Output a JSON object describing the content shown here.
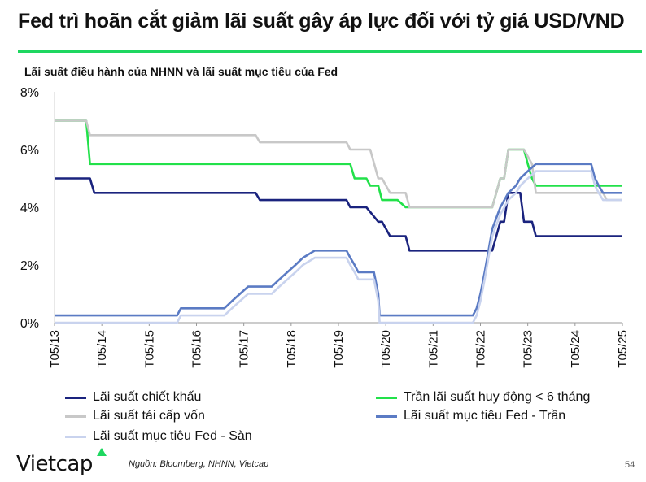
{
  "header": {
    "title": "Fed trì hoãn cắt giảm lãi suất gây áp lực đối với tỷ giá USD/VND",
    "rule_color": "#1ed760"
  },
  "chart_data": {
    "type": "line",
    "title": "Lãi suất điều hành của NHNN và lãi suất mục tiêu của Fed",
    "xlabel": "",
    "ylabel": "",
    "ylim": [
      0,
      8
    ],
    "xlim": [
      2013.33,
      2025.33
    ],
    "yticks": [
      "0%",
      "2%",
      "4%",
      "6%",
      "8%"
    ],
    "xticks": [
      "T05/13",
      "T05/14",
      "T05/15",
      "T05/16",
      "T05/17",
      "T05/18",
      "T05/19",
      "T05/20",
      "T05/21",
      "T05/22",
      "T05/23",
      "T05/24",
      "T05/25"
    ],
    "grid": false,
    "legend_position": "bottom",
    "series": [
      {
        "name": "Lãi suất chiết khấu",
        "color": "#1a237e",
        "points": [
          [
            2013.33,
            5.0
          ],
          [
            2014.08,
            5.0
          ],
          [
            2014.17,
            4.5
          ],
          [
            2017.58,
            4.5
          ],
          [
            2017.67,
            4.25
          ],
          [
            2019.5,
            4.25
          ],
          [
            2019.58,
            4.0
          ],
          [
            2019.92,
            4.0
          ],
          [
            2020.17,
            3.5
          ],
          [
            2020.25,
            3.5
          ],
          [
            2020.42,
            3.0
          ],
          [
            2020.75,
            3.0
          ],
          [
            2020.83,
            2.5
          ],
          [
            2022.58,
            2.5
          ],
          [
            2022.75,
            3.5
          ],
          [
            2022.83,
            3.5
          ],
          [
            2022.92,
            4.5
          ],
          [
            2023.17,
            4.5
          ],
          [
            2023.25,
            3.5
          ],
          [
            2023.42,
            3.5
          ],
          [
            2023.5,
            3.0
          ],
          [
            2025.33,
            3.0
          ]
        ]
      },
      {
        "name": "Trần lãi suất huy động < 6 tháng",
        "color": "#22e14a",
        "points": [
          [
            2013.33,
            7.0
          ],
          [
            2014.0,
            7.0
          ],
          [
            2014.08,
            5.5
          ],
          [
            2019.58,
            5.5
          ],
          [
            2019.67,
            5.0
          ],
          [
            2019.92,
            5.0
          ],
          [
            2020.0,
            4.75
          ],
          [
            2020.17,
            4.75
          ],
          [
            2020.25,
            4.25
          ],
          [
            2020.58,
            4.25
          ],
          [
            2020.75,
            4.0
          ],
          [
            2022.58,
            4.0
          ],
          [
            2022.75,
            5.0
          ],
          [
            2022.83,
            5.0
          ],
          [
            2022.92,
            6.0
          ],
          [
            2023.25,
            6.0
          ],
          [
            2023.33,
            5.5
          ],
          [
            2023.42,
            5.0
          ],
          [
            2023.5,
            4.75
          ],
          [
            2025.33,
            4.75
          ]
        ]
      },
      {
        "name": "Lãi suất tái cấp vốn",
        "color": "#c8c8c8",
        "points": [
          [
            2013.33,
            7.0
          ],
          [
            2014.0,
            7.0
          ],
          [
            2014.08,
            6.5
          ],
          [
            2017.58,
            6.5
          ],
          [
            2017.67,
            6.25
          ],
          [
            2019.5,
            6.25
          ],
          [
            2019.58,
            6.0
          ],
          [
            2020.0,
            6.0
          ],
          [
            2020.17,
            5.0
          ],
          [
            2020.25,
            5.0
          ],
          [
            2020.42,
            4.5
          ],
          [
            2020.75,
            4.5
          ],
          [
            2020.83,
            4.0
          ],
          [
            2022.58,
            4.0
          ],
          [
            2022.75,
            5.0
          ],
          [
            2022.83,
            5.0
          ],
          [
            2022.92,
            6.0
          ],
          [
            2023.25,
            6.0
          ],
          [
            2023.42,
            5.5
          ],
          [
            2023.5,
            4.5
          ],
          [
            2024.92,
            4.5
          ],
          [
            2025.0,
            4.25
          ],
          [
            2025.33,
            4.25
          ]
        ]
      },
      {
        "name": "Lãi suất mục tiêu Fed - Trần",
        "color": "#5b7bc4",
        "points": [
          [
            2013.33,
            0.25
          ],
          [
            2015.92,
            0.25
          ],
          [
            2016.0,
            0.5
          ],
          [
            2016.92,
            0.5
          ],
          [
            2017.08,
            0.75
          ],
          [
            2017.25,
            1.0
          ],
          [
            2017.42,
            1.25
          ],
          [
            2017.92,
            1.25
          ],
          [
            2018.08,
            1.5
          ],
          [
            2018.25,
            1.75
          ],
          [
            2018.42,
            2.0
          ],
          [
            2018.58,
            2.25
          ],
          [
            2018.83,
            2.5
          ],
          [
            2019.5,
            2.5
          ],
          [
            2019.58,
            2.25
          ],
          [
            2019.67,
            2.0
          ],
          [
            2019.75,
            1.75
          ],
          [
            2020.08,
            1.75
          ],
          [
            2020.17,
            1.0
          ],
          [
            2020.2,
            0.25
          ],
          [
            2022.17,
            0.25
          ],
          [
            2022.25,
            0.5
          ],
          [
            2022.33,
            1.0
          ],
          [
            2022.42,
            1.75
          ],
          [
            2022.5,
            2.5
          ],
          [
            2022.58,
            3.25
          ],
          [
            2022.75,
            4.0
          ],
          [
            2022.92,
            4.5
          ],
          [
            2023.08,
            4.75
          ],
          [
            2023.17,
            5.0
          ],
          [
            2023.33,
            5.25
          ],
          [
            2023.5,
            5.5
          ],
          [
            2024.67,
            5.5
          ],
          [
            2024.75,
            5.0
          ],
          [
            2024.83,
            4.75
          ],
          [
            2024.92,
            4.5
          ],
          [
            2025.33,
            4.5
          ]
        ]
      },
      {
        "name": "Lãi suất mục tiêu Fed - Sàn",
        "color": "#c9d3ee",
        "points": [
          [
            2013.33,
            0.0
          ],
          [
            2015.92,
            0.0
          ],
          [
            2016.0,
            0.25
          ],
          [
            2016.92,
            0.25
          ],
          [
            2017.08,
            0.5
          ],
          [
            2017.25,
            0.75
          ],
          [
            2017.42,
            1.0
          ],
          [
            2017.92,
            1.0
          ],
          [
            2018.08,
            1.25
          ],
          [
            2018.25,
            1.5
          ],
          [
            2018.42,
            1.75
          ],
          [
            2018.58,
            2.0
          ],
          [
            2018.83,
            2.25
          ],
          [
            2019.5,
            2.25
          ],
          [
            2019.58,
            2.0
          ],
          [
            2019.67,
            1.75
          ],
          [
            2019.75,
            1.5
          ],
          [
            2020.08,
            1.5
          ],
          [
            2020.17,
            0.75
          ],
          [
            2020.2,
            0.0
          ],
          [
            2022.17,
            0.0
          ],
          [
            2022.25,
            0.25
          ],
          [
            2022.33,
            0.75
          ],
          [
            2022.42,
            1.5
          ],
          [
            2022.5,
            2.25
          ],
          [
            2022.58,
            3.0
          ],
          [
            2022.75,
            3.75
          ],
          [
            2022.92,
            4.25
          ],
          [
            2023.08,
            4.5
          ],
          [
            2023.17,
            4.75
          ],
          [
            2023.33,
            5.0
          ],
          [
            2023.5,
            5.25
          ],
          [
            2024.67,
            5.25
          ],
          [
            2024.75,
            4.75
          ],
          [
            2024.83,
            4.5
          ],
          [
            2024.92,
            4.25
          ],
          [
            2025.33,
            4.25
          ]
        ]
      }
    ]
  },
  "footer": {
    "logo_text": "Vietcap",
    "source": "Nguồn: Bloomberg, NHNN, Vietcap",
    "page_number": "54"
  }
}
